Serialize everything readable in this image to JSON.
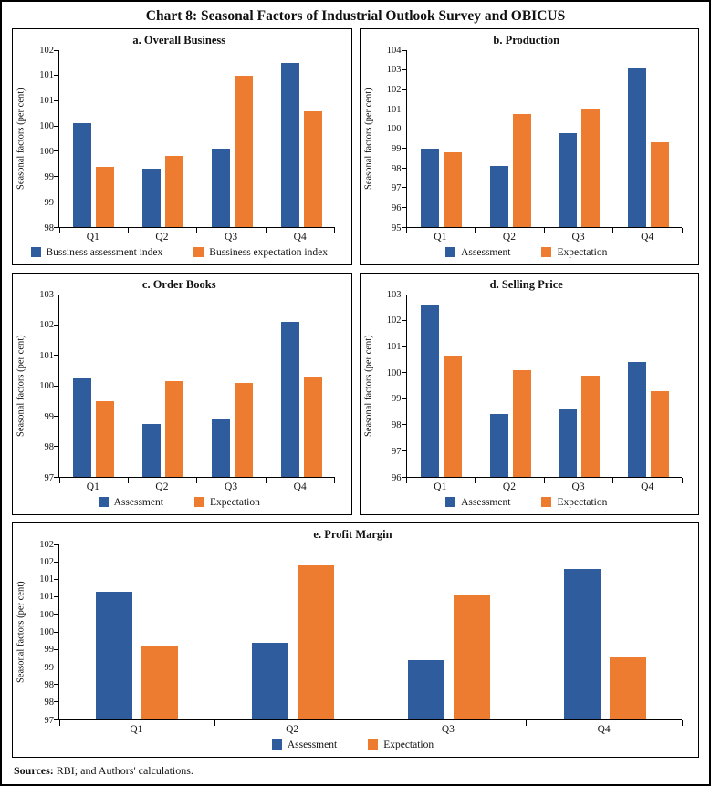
{
  "figure": {
    "title": "Chart 8: Seasonal Factors of Industrial Outlook Survey and OBICUS",
    "source_label": "Sources:",
    "source_text": " RBI; and Authors' calculations."
  },
  "colors": {
    "assessment": "#2e5c9c",
    "expectation": "#ed7c31",
    "axis": "#000000"
  },
  "chart_data": [
    {
      "id": "a",
      "type": "bar",
      "title": "a. Overall Business",
      "xlabel": "",
      "ylabel": "Seasonal factors (per cent)",
      "categories": [
        "Q1",
        "Q2",
        "Q3",
        "Q4"
      ],
      "ylim": [
        98,
        101.5
      ],
      "ystep": 0.5,
      "round_ticks": true,
      "grid": false,
      "legend_position": "bottom",
      "series": [
        {
          "name": "Bussiness assessment index",
          "color_key": "assessment",
          "values": [
            100.05,
            99.15,
            99.55,
            101.25
          ]
        },
        {
          "name": "Bussiness expectation index",
          "color_key": "expectation",
          "values": [
            99.2,
            99.4,
            101.0,
            100.3
          ]
        }
      ]
    },
    {
      "id": "b",
      "type": "bar",
      "title": "b. Production",
      "xlabel": "",
      "ylabel": "Seasonal factors (per cent)",
      "categories": [
        "Q1",
        "Q2",
        "Q3",
        "Q4"
      ],
      "ylim": [
        95,
        104
      ],
      "ystep": 1,
      "round_ticks": false,
      "grid": false,
      "legend_position": "bottom",
      "series": [
        {
          "name": "Assessment",
          "color_key": "assessment",
          "values": [
            99.0,
            98.1,
            99.8,
            103.05
          ]
        },
        {
          "name": "Expectation",
          "color_key": "expectation",
          "values": [
            98.8,
            100.75,
            101.0,
            99.3
          ]
        }
      ]
    },
    {
      "id": "c",
      "type": "bar",
      "title": "c. Order Books",
      "xlabel": "",
      "ylabel": "Seasonal factors (per cent)",
      "categories": [
        "Q1",
        "Q2",
        "Q3",
        "Q4"
      ],
      "ylim": [
        97,
        103
      ],
      "ystep": 1,
      "round_ticks": false,
      "grid": false,
      "legend_position": "bottom",
      "series": [
        {
          "name": "Assessment",
          "color_key": "assessment",
          "values": [
            100.25,
            98.75,
            98.9,
            102.1
          ]
        },
        {
          "name": "Expectation",
          "color_key": "expectation",
          "values": [
            99.5,
            100.15,
            100.1,
            100.3
          ]
        }
      ]
    },
    {
      "id": "d",
      "type": "bar",
      "title": "d. Selling Price",
      "xlabel": "",
      "ylabel": "Seasonal factors (per cent)",
      "categories": [
        "Q1",
        "Q2",
        "Q3",
        "Q4"
      ],
      "ylim": [
        96,
        103
      ],
      "ystep": 1,
      "round_ticks": false,
      "grid": false,
      "legend_position": "bottom",
      "series": [
        {
          "name": "Assessment",
          "color_key": "assessment",
          "values": [
            102.6,
            98.4,
            98.6,
            100.4
          ]
        },
        {
          "name": "Expectation",
          "color_key": "expectation",
          "values": [
            100.65,
            100.1,
            99.9,
            99.3
          ]
        }
      ]
    },
    {
      "id": "e",
      "type": "bar",
      "title": "e. Profit Margin",
      "xlabel": "",
      "ylabel": "Seasonal factors (per cent)",
      "categories": [
        "Q1",
        "Q2",
        "Q3",
        "Q4"
      ],
      "ylim": [
        97,
        102
      ],
      "ystep": 0.5,
      "round_ticks": true,
      "grid": false,
      "legend_position": "bottom",
      "series": [
        {
          "name": "Assessment",
          "color_key": "assessment",
          "values": [
            100.65,
            99.2,
            98.7,
            101.3
          ]
        },
        {
          "name": "Expectation",
          "color_key": "expectation",
          "values": [
            99.1,
            101.4,
            100.55,
            98.8
          ]
        }
      ]
    }
  ]
}
